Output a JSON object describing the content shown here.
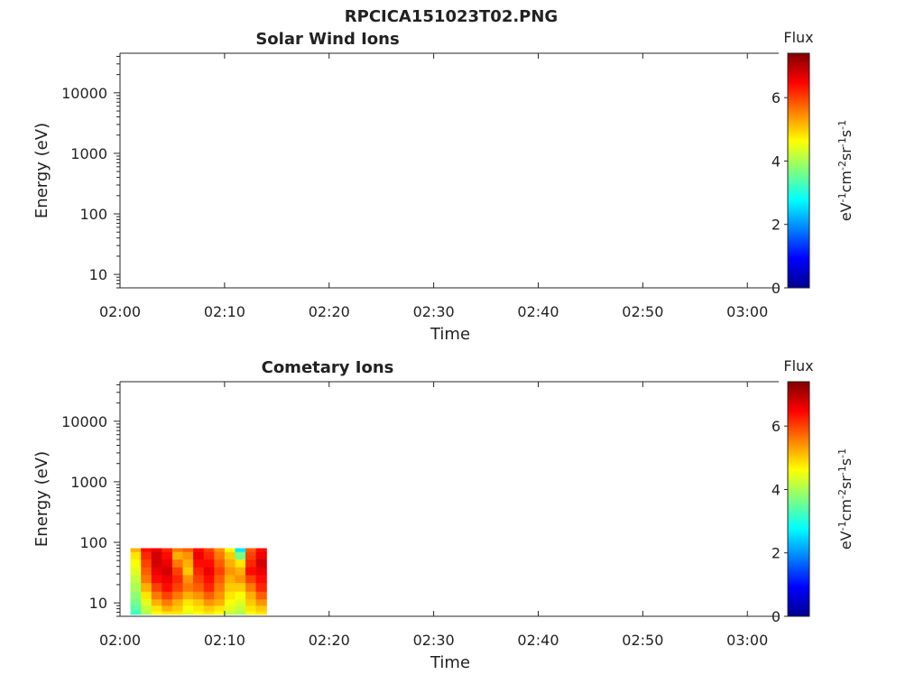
{
  "figure": {
    "title": "RPCICA151023T02.PNG"
  },
  "colorbar": {
    "title": "Flux",
    "units_parts": [
      "eV",
      "-1",
      "cm",
      "-2",
      "sr",
      "-1",
      "s",
      "-1"
    ],
    "ticks": [
      0,
      2,
      4,
      6
    ],
    "range": [
      0,
      7.4
    ],
    "colormap": "jet"
  },
  "chart_data": [
    {
      "type": "heatmap",
      "title": "Solar Wind Ions",
      "xlabel": "Time",
      "ylabel": "Energy (eV)",
      "x_ticks": [
        "02:00",
        "02:10",
        "02:20",
        "02:30",
        "02:40",
        "02:50",
        "03:00"
      ],
      "xlim": [
        "02:00",
        "03:03"
      ],
      "y_ticks": [
        10,
        100,
        1000,
        10000
      ],
      "y_tick_labels": [
        "10",
        "100",
        "1000",
        "10000"
      ],
      "ylim": [
        6,
        45000
      ],
      "y_scale": "log",
      "colorbar_label": "Flux",
      "data": []
    },
    {
      "type": "heatmap",
      "title": "Cometary Ions",
      "xlabel": "Time",
      "ylabel": "Energy (eV)",
      "x_ticks": [
        "02:00",
        "02:10",
        "02:20",
        "02:30",
        "02:40",
        "02:50",
        "03:00"
      ],
      "xlim": [
        "02:00",
        "03:03"
      ],
      "y_ticks": [
        10,
        100,
        1000,
        10000
      ],
      "y_tick_labels": [
        "10",
        "100",
        "1000",
        "10000"
      ],
      "ylim": [
        6,
        45000
      ],
      "y_scale": "log",
      "colorbar_label": "Flux",
      "data": [
        {
          "time_start": "02:01",
          "time_end": "02:14",
          "energy_min": 6,
          "energy_max": 80,
          "flux_range": [
            3,
            7
          ],
          "note_region": "band"
        }
      ],
      "cells": {
        "times": [
          "02:01",
          "02:02",
          "02:03",
          "02:04",
          "02:05",
          "02:06",
          "02:07",
          "02:08",
          "02:09",
          "02:10",
          "02:11",
          "02:12",
          "02:13"
        ],
        "energies": [
          80,
          60,
          45,
          33,
          25,
          18,
          13,
          10,
          8,
          6.5
        ],
        "flux": [
          [
            5.2,
            6.4,
            6.6,
            6.2,
            5.6,
            5.8,
            6.4,
            6.0,
            5.4,
            4.6,
            2.6,
            5.8,
            6.4
          ],
          [
            4.8,
            6.2,
            6.8,
            6.4,
            5.2,
            5.4,
            6.6,
            6.2,
            5.6,
            5.0,
            3.6,
            6.0,
            6.6
          ],
          [
            4.6,
            6.0,
            6.8,
            6.6,
            5.6,
            5.2,
            6.4,
            6.4,
            5.8,
            5.2,
            4.8,
            6.2,
            6.8
          ],
          [
            4.4,
            5.8,
            6.6,
            6.8,
            6.0,
            5.0,
            6.2,
            6.6,
            6.0,
            5.4,
            5.2,
            6.4,
            6.6
          ],
          [
            4.2,
            5.6,
            6.4,
            6.6,
            6.2,
            5.4,
            6.0,
            6.4,
            5.8,
            5.2,
            5.4,
            6.0,
            6.4
          ],
          [
            4.0,
            5.2,
            6.0,
            6.4,
            6.0,
            5.6,
            5.8,
            6.2,
            5.6,
            5.0,
            5.0,
            5.6,
            6.2
          ],
          [
            3.8,
            4.8,
            5.6,
            6.0,
            5.6,
            5.2,
            5.4,
            5.8,
            5.4,
            4.8,
            4.6,
            5.2,
            5.8
          ],
          [
            3.6,
            4.4,
            5.2,
            5.6,
            5.2,
            4.8,
            5.0,
            5.4,
            5.2,
            4.6,
            4.4,
            5.0,
            5.4
          ],
          [
            3.4,
            4.2,
            4.8,
            5.2,
            5.0,
            4.6,
            4.8,
            5.0,
            4.8,
            4.4,
            4.2,
            4.8,
            5.0
          ],
          [
            3.2,
            4.0,
            4.6,
            4.8,
            4.8,
            4.4,
            4.6,
            4.8,
            4.6,
            4.2,
            4.0,
            4.6,
            4.8
          ]
        ]
      }
    }
  ]
}
